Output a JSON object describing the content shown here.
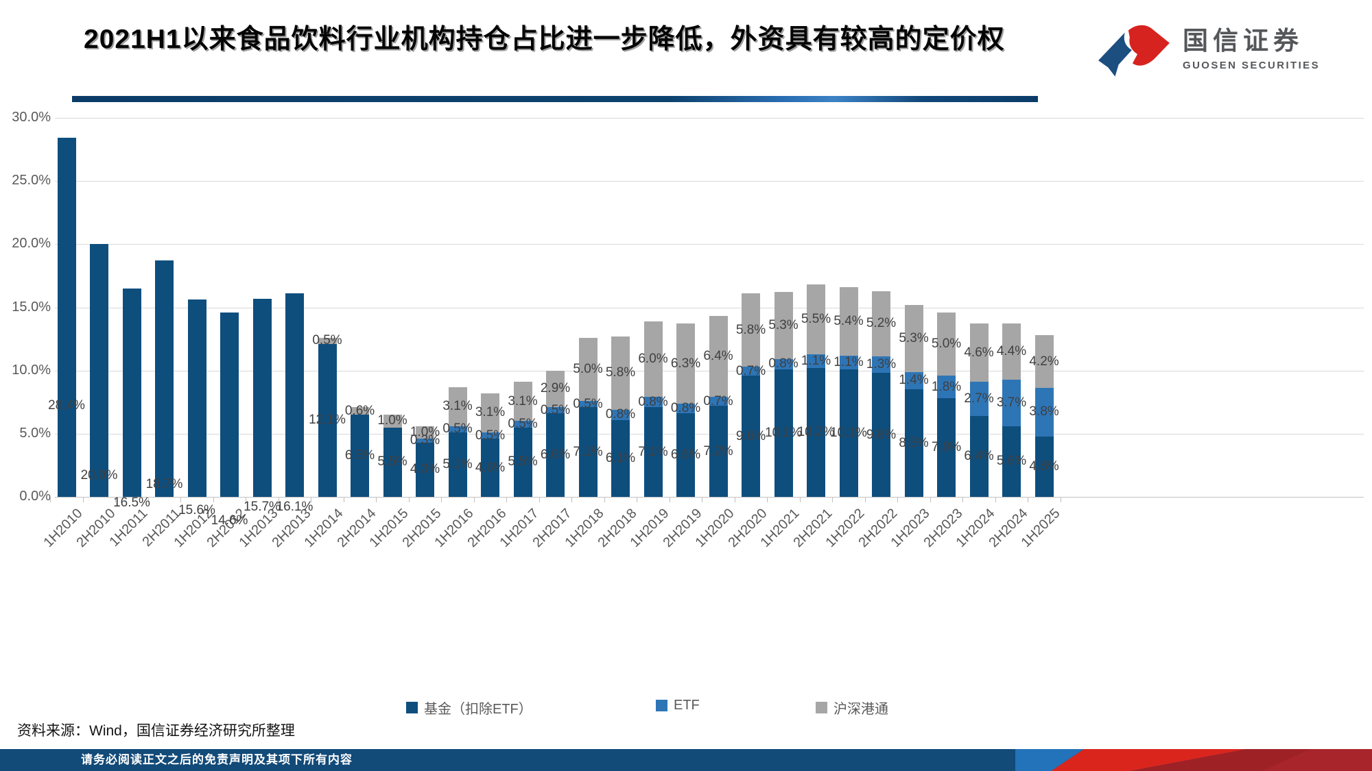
{
  "header": {
    "title": "2021H1以来食品饮料行业机构持仓占比进一步降低，外资具有较高的定价权",
    "logo_cn": "国信证券",
    "logo_en": "GUOSEN SECURITIES"
  },
  "chart_data": {
    "type": "bar",
    "stacked": true,
    "categories": [
      "1H2010",
      "2H2010",
      "1H2011",
      "2H2011",
      "1H2012",
      "2H2012",
      "1H2013",
      "2H2013",
      "1H2014",
      "2H2014",
      "1H2015",
      "2H2015",
      "1H2016",
      "2H2016",
      "1H2017",
      "2H2017",
      "1H2018",
      "2H2018",
      "1H2019",
      "2H2019",
      "1H2020",
      "2H2020",
      "1H2021",
      "2H2021",
      "1H2022",
      "2H2022",
      "1H2023",
      "2H2023",
      "1H2024",
      "2H2024",
      "1H2025"
    ],
    "series": [
      {
        "name": "基金（扣除ETF）",
        "color": "#0e4e7d",
        "values": [
          28.4,
          20.0,
          16.5,
          18.7,
          15.6,
          14.6,
          15.7,
          16.1,
          12.1,
          6.5,
          5.5,
          4.3,
          5.1,
          4.6,
          5.5,
          6.6,
          7.1,
          6.1,
          7.1,
          6.6,
          7.2,
          9.6,
          10.1,
          10.2,
          10.1,
          9.8,
          8.5,
          7.8,
          6.4,
          5.6,
          4.8
        ]
      },
      {
        "name": "ETF",
        "color": "#2e75b6",
        "values": [
          0,
          0,
          0,
          0,
          0,
          0,
          0,
          0,
          0,
          0,
          0,
          0.3,
          0.5,
          0.5,
          0.5,
          0.5,
          0.5,
          0.8,
          0.8,
          0.8,
          0.7,
          0.7,
          0.8,
          1.1,
          1.1,
          1.3,
          1.4,
          1.8,
          2.7,
          3.7,
          3.8
        ]
      },
      {
        "name": "沪深港通",
        "color": "#a6a6a6",
        "values": [
          0,
          0,
          0,
          0,
          0,
          0,
          0,
          0,
          0.5,
          0.6,
          1.0,
          1.0,
          3.1,
          3.1,
          3.1,
          2.9,
          5.0,
          5.8,
          6.0,
          6.3,
          6.4,
          5.8,
          5.3,
          5.5,
          5.4,
          5.2,
          5.3,
          5.0,
          4.6,
          4.4,
          4.2
        ]
      }
    ],
    "ylim": [
      0,
      30
    ],
    "ytick_labels": [
      "0.0%",
      "5.0%",
      "10.0%",
      "15.0%",
      "20.0%",
      "25.0%",
      "30.0%"
    ],
    "grid": true,
    "legend_position": "bottom",
    "xlabel": "",
    "ylabel": ""
  },
  "footer": {
    "source": "资料来源：Wind，国信证券经济研究所整理",
    "disclaimer": "请务必阅读正文之后的免责声明及其项下所有内容"
  }
}
